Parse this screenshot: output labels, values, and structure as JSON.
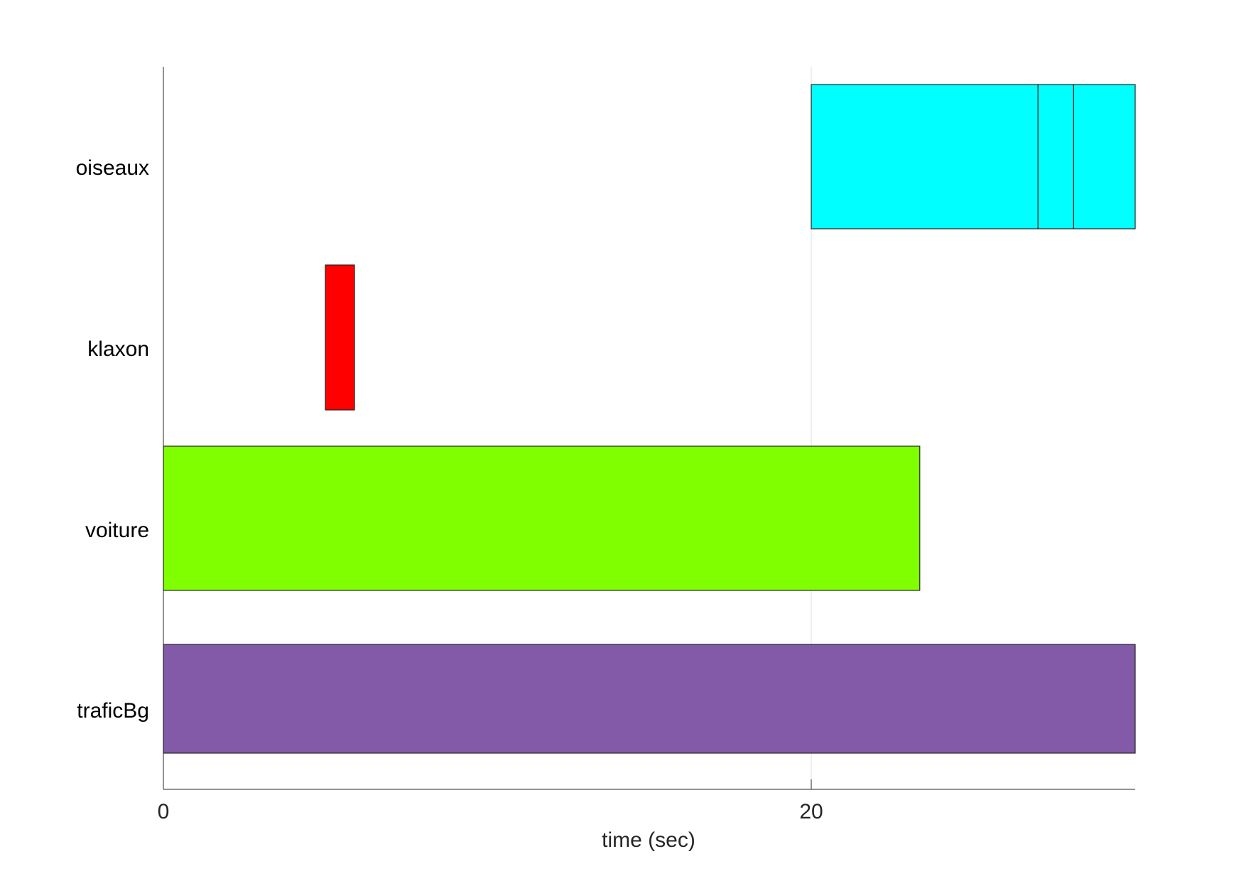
{
  "chart_data": {
    "type": "timeline",
    "xlabel": "time (sec)",
    "xlim": [
      0,
      30
    ],
    "xticks": [
      0,
      20
    ],
    "xtick_labels": [
      "0",
      "20"
    ],
    "grid": "vertical lines at ticks",
    "categories": [
      "oiseaux",
      "klaxon",
      "voiture",
      "traficBg"
    ],
    "segments": [
      {
        "category": "oiseaux",
        "start": 20,
        "end": 27,
        "color": "#00FFFF"
      },
      {
        "category": "oiseaux",
        "start": 27,
        "end": 28.1,
        "color": "#00FFFF"
      },
      {
        "category": "oiseaux",
        "start": 28.1,
        "end": 30,
        "color": "#00FFFF"
      },
      {
        "category": "klaxon",
        "start": 5,
        "end": 5.9,
        "color": "#FF0000"
      },
      {
        "category": "voiture",
        "start": 0,
        "end": 23.35,
        "color": "#7FFF00"
      },
      {
        "category": "traficBg",
        "start": 0,
        "end": 30,
        "color": "#825AA8"
      }
    ]
  }
}
